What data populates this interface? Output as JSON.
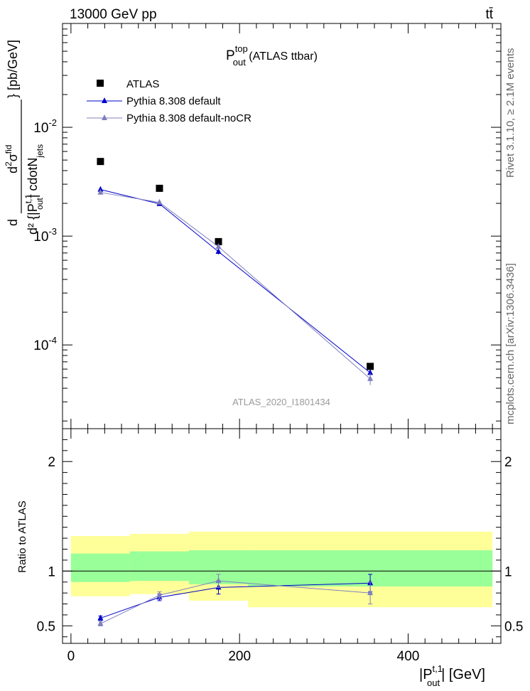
{
  "header": {
    "energy_label": "13000 GeV pp",
    "process_label": "tt̄"
  },
  "side_labels": {
    "rivet": "Rivet 3.1.10, ≥ 2.1M events",
    "mcplots": "mcplots.cern.ch [arXiv:1306.3436]"
  },
  "watermark": "ATLAS_2020_I1801434",
  "colors": {
    "data": "#000000",
    "pythia_default": "#0000cc",
    "pythia_nocr": "#7f7fbf",
    "band_yellow": "#ffff99",
    "band_green": "#99ff99"
  },
  "chart_data": [
    {
      "type": "scatter",
      "panel": "main",
      "title": "P_out^top (ATLAS ttbar)",
      "title_main": "P",
      "title_sup": "top",
      "title_sub": "out",
      "title_rest": " (ATLAS ttbar)",
      "ylabel": "d²σ^fid / d²{|P_out^t,1| cdotN_jets} [pb/GeV]",
      "ylabel_parts": {
        "d_prefix": "d",
        "num": "d",
        "sigma": "σ",
        "fid": "fid",
        "den": "d² {|P",
        "den_sub": "out",
        "den_sup": "t,1",
        "den_mid": "| cdotN",
        "den_sub2": "jets",
        "bracket": "} [pb/GeV]"
      },
      "yscale": "log",
      "ylim": [
        1.7e-05,
        0.09
      ],
      "xlim": [
        -10,
        510
      ],
      "y_tick_labels": [
        {
          "base": "10",
          "exp": "-2",
          "value": 0.01
        },
        {
          "base": "10",
          "exp": "-3",
          "value": 0.001
        },
        {
          "base": "10",
          "exp": "-4",
          "value": 0.0001
        }
      ],
      "legend_position": "top-left",
      "series": [
        {
          "name": "ATLAS",
          "marker": "square",
          "points": [
            {
              "x": 35,
              "y": 0.00485
            },
            {
              "x": 105,
              "y": 0.00275
            },
            {
              "x": 175,
              "y": 0.00089
            },
            {
              "x": 355,
              "y": 6.35e-05
            }
          ]
        },
        {
          "name": "Pythia 8.308 default",
          "marker": "triangle",
          "points": [
            {
              "x": 35,
              "y": 0.00268,
              "err": 5e-05
            },
            {
              "x": 105,
              "y": 0.00198,
              "err": 4e-05
            },
            {
              "x": 175,
              "y": 0.00072,
              "err": 4e-05
            },
            {
              "x": 355,
              "y": 5.55e-05,
              "err": 4e-06
            }
          ]
        },
        {
          "name": "Pythia 8.308 default-noCR",
          "marker": "triangle",
          "points": [
            {
              "x": 35,
              "y": 0.00252,
              "err": 5e-05
            },
            {
              "x": 105,
              "y": 0.00204,
              "err": 4e-05
            },
            {
              "x": 175,
              "y": 0.0008,
              "err": 4e-05
            },
            {
              "x": 355,
              "y": 4.88e-05,
              "err": 6e-06
            }
          ]
        }
      ]
    },
    {
      "type": "line",
      "panel": "ratio",
      "ylabel": "Ratio to ATLAS",
      "xlabel": "|P_out^t,1| [GeV]",
      "xlabel_parts": {
        "pre": "|P",
        "sub": "out",
        "sup": "t,1",
        "post": "| [GeV]"
      },
      "ylim": [
        0.34,
        2.3
      ],
      "xlim": [
        -10,
        510
      ],
      "y_ticks": [
        0.5,
        1,
        2
      ],
      "y_tick_labels": [
        "0.5",
        "1",
        "2"
      ],
      "x_ticks": [
        0,
        200,
        400
      ],
      "x_tick_labels": [
        "0",
        "200",
        "400"
      ],
      "bands": [
        {
          "x0": 0,
          "x1": 70,
          "yellow": [
            0.77,
            1.32
          ],
          "green": [
            0.9,
            1.16
          ]
        },
        {
          "x0": 70,
          "x1": 140,
          "yellow": [
            0.79,
            1.34
          ],
          "green": [
            0.91,
            1.18
          ]
        },
        {
          "x0": 140,
          "x1": 210,
          "yellow": [
            0.73,
            1.36
          ],
          "green": [
            0.88,
            1.19
          ]
        },
        {
          "x0": 210,
          "x1": 500,
          "yellow": [
            0.67,
            1.36
          ],
          "green": [
            0.86,
            1.19
          ]
        }
      ],
      "series": [
        {
          "name": "Pythia 8.308 default",
          "points": [
            {
              "x": 35,
              "y": 0.57,
              "err": 0.02
            },
            {
              "x": 105,
              "y": 0.76,
              "err": 0.03
            },
            {
              "x": 175,
              "y": 0.85,
              "err": 0.06
            },
            {
              "x": 355,
              "y": 0.89,
              "err": 0.08
            }
          ]
        },
        {
          "name": "Pythia 8.308 default-noCR",
          "points": [
            {
              "x": 35,
              "y": 0.52,
              "err": 0.02
            },
            {
              "x": 105,
              "y": 0.78,
              "err": 0.03
            },
            {
              "x": 175,
              "y": 0.91,
              "err": 0.06
            },
            {
              "x": 355,
              "y": 0.8,
              "err": 0.1
            }
          ]
        }
      ]
    }
  ]
}
